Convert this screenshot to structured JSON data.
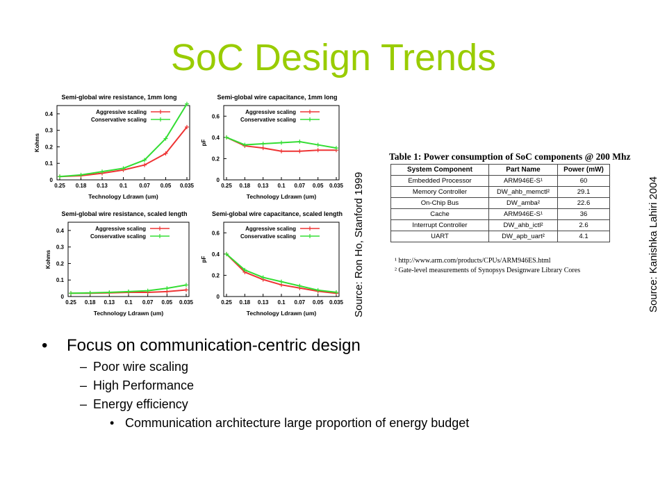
{
  "slide": {
    "title": "SoC Design Trends",
    "source_left": "Source: Ron Ho, Stanford 1999",
    "source_right": "Source: Kanishka Lahiri 2004",
    "bullets": {
      "main": "Focus on communication-centric design",
      "sub": [
        "Poor wire scaling",
        "High Performance",
        "Energy efficiency"
      ],
      "subsub": "Communication architecture large proportion of energy budget"
    }
  },
  "table": {
    "caption": "Table 1: Power consumption of SoC components @ 200 Mhz",
    "headers": [
      "System Component",
      "Part Name",
      "Power (mW)"
    ],
    "rows": [
      [
        "Embedded Processor",
        "ARM946E-S¹",
        "60"
      ],
      [
        "Memory Controller",
        "DW_ahb_memctl²",
        "29.1"
      ],
      [
        "On-Chip Bus",
        "DW_amba²",
        "22.6"
      ],
      [
        "Cache",
        "ARM946E-S¹",
        "36"
      ],
      [
        "Interrupt Controller",
        "DW_ahb_ictl²",
        "2.6"
      ],
      [
        "UART",
        "DW_apb_uart²",
        "4.1"
      ]
    ],
    "footnotes": [
      "¹ http://www.arm.com/products/CPUs/ARM946ES.html",
      "² Gate-level measurements of Synopsys Designware Library Cores"
    ]
  },
  "chart_data": [
    {
      "type": "line",
      "title": "Semi-global wire resistance, 1mm long",
      "xlabel": "Technology Ldrawn (um)",
      "ylabel": "Kohms",
      "x": [
        "0.25",
        "0.18",
        "0.13",
        "0.1",
        "0.07",
        "0.05",
        "0.035"
      ],
      "ylim": [
        0,
        0.45
      ],
      "yticks": [
        "0",
        "0.1",
        "0.2",
        "0.3",
        "0.4"
      ],
      "ytick_values": [
        0,
        0.1,
        0.2,
        0.3,
        0.4
      ],
      "series": [
        {
          "name": "Aggressive scaling",
          "color": "#ee3333",
          "values": [
            0.02,
            0.025,
            0.04,
            0.06,
            0.09,
            0.16,
            0.32
          ]
        },
        {
          "name": "Conservative scaling",
          "color": "#33dd33",
          "values": [
            0.02,
            0.03,
            0.05,
            0.07,
            0.12,
            0.25,
            0.46
          ]
        }
      ]
    },
    {
      "type": "line",
      "title": "Semi-global wire capacitance, 1mm long",
      "xlabel": "Technology Ldrawn (um)",
      "ylabel": "pF",
      "x": [
        "0.25",
        "0.18",
        "0.13",
        "0.1",
        "0.07",
        "0.05",
        "0.035"
      ],
      "ylim": [
        0,
        0.7
      ],
      "yticks": [
        "0",
        "0.2",
        "0.4",
        "0.6"
      ],
      "ytick_values": [
        0,
        0.2,
        0.4,
        0.6
      ],
      "series": [
        {
          "name": "Aggressive scaling",
          "color": "#ee3333",
          "values": [
            0.4,
            0.32,
            0.3,
            0.27,
            0.27,
            0.28,
            0.28
          ]
        },
        {
          "name": "Conservative scaling",
          "color": "#33dd33",
          "values": [
            0.4,
            0.33,
            0.34,
            0.35,
            0.36,
            0.33,
            0.3
          ]
        }
      ]
    },
    {
      "type": "line",
      "title": "Semi-global wire resistance, scaled length",
      "xlabel": "Technology Ldrawn (um)",
      "ylabel": "Kohms",
      "x": [
        "0.25",
        "0.18",
        "0.13",
        "0.1",
        "0.07",
        "0.05",
        "0.035"
      ],
      "ylim": [
        0,
        0.45
      ],
      "yticks": [
        "0",
        "0.1",
        "0.2",
        "0.3",
        "0.4"
      ],
      "ytick_values": [
        0,
        0.1,
        0.2,
        0.3,
        0.4
      ],
      "series": [
        {
          "name": "Aggressive scaling",
          "color": "#ee3333",
          "values": [
            0.02,
            0.02,
            0.022,
            0.025,
            0.025,
            0.03,
            0.04
          ]
        },
        {
          "name": "Conservative scaling",
          "color": "#33dd33",
          "values": [
            0.02,
            0.022,
            0.025,
            0.03,
            0.035,
            0.05,
            0.07
          ]
        }
      ]
    },
    {
      "type": "line",
      "title": "Semi-global wire capacitance, scaled length",
      "xlabel": "Technology Ldrawn (um)",
      "ylabel": "pF",
      "x": [
        "0.25",
        "0.18",
        "0.13",
        "0.1",
        "0.07",
        "0.05",
        "0.035"
      ],
      "ylim": [
        0,
        0.7
      ],
      "yticks": [
        "0",
        "0.2",
        "0.4",
        "0.6"
      ],
      "ytick_values": [
        0,
        0.2,
        0.4,
        0.6
      ],
      "series": [
        {
          "name": "Aggressive scaling",
          "color": "#ee3333",
          "values": [
            0.4,
            0.23,
            0.16,
            0.11,
            0.08,
            0.05,
            0.03
          ]
        },
        {
          "name": "Conservative scaling",
          "color": "#33dd33",
          "values": [
            0.4,
            0.25,
            0.18,
            0.14,
            0.1,
            0.06,
            0.04
          ]
        }
      ]
    }
  ]
}
